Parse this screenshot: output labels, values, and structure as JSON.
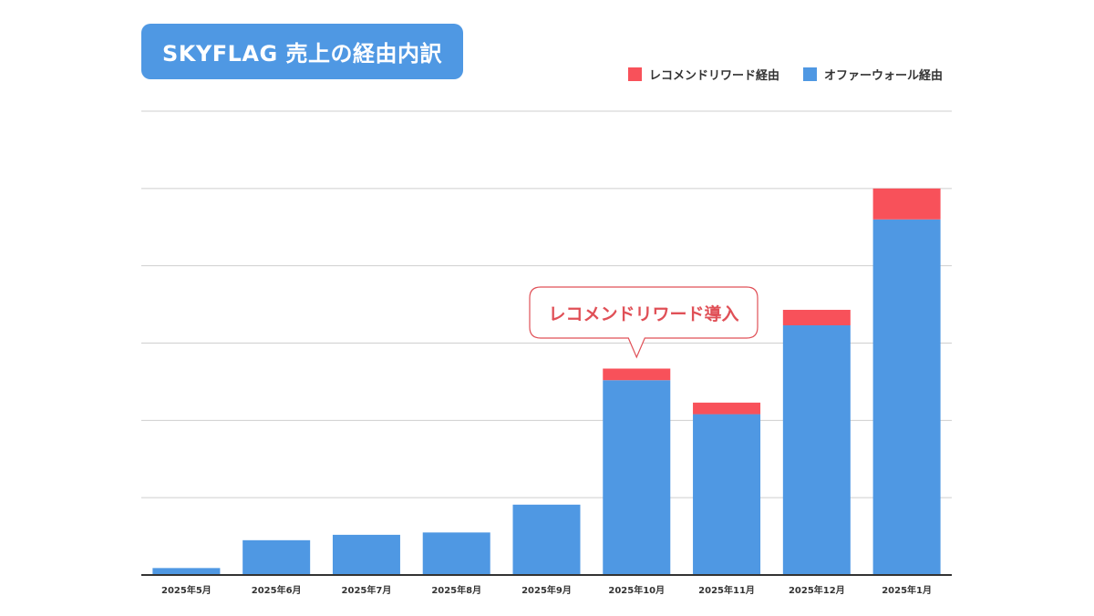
{
  "chart_data": {
    "type": "bar",
    "stacked": true,
    "title": "SKYFLAG 売上の経由内訳",
    "xlabel": "",
    "ylabel": "",
    "categories": [
      "2025年5月",
      "2025年6月",
      "2025年7月",
      "2025年8月",
      "2025年9月",
      "2025年10月",
      "2025年11月",
      "2025年12月",
      "2025年1月"
    ],
    "series": [
      {
        "name": "オファーウォール経由",
        "color": "#4f98e3",
        "values": [
          0.09,
          0.45,
          0.52,
          0.55,
          0.91,
          2.52,
          2.08,
          3.23,
          4.6
        ]
      },
      {
        "name": "レコメンドリワード経由",
        "color": "#f8515a",
        "values": [
          0,
          0,
          0,
          0,
          0,
          0.15,
          0.15,
          0.2,
          0.4
        ]
      }
    ],
    "ylim": [
      0,
      6
    ],
    "y_tick_labels_shown": false,
    "grid": true,
    "legend_position": "top-right",
    "annotation": {
      "text": "レコメンドリワード導入",
      "category": "2025年10月",
      "color": "#e05057"
    }
  }
}
